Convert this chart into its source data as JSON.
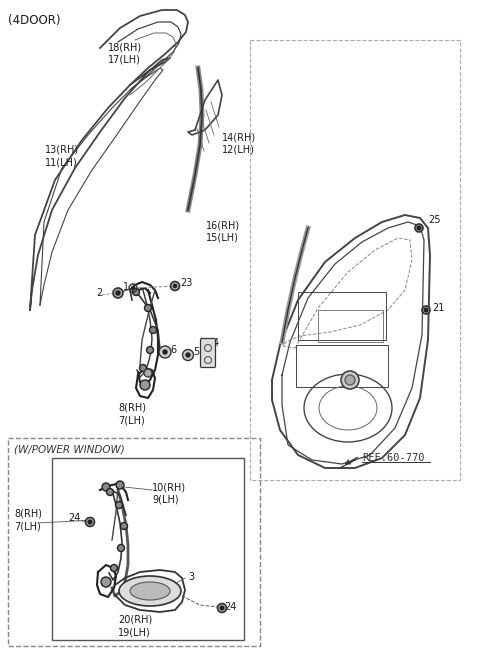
{
  "title": "(4DOOR)",
  "background_color": "#ffffff",
  "text_color": "#1a1a1a",
  "line_color": "#444444",
  "ref_text": "REF.60-770",
  "subtitle_box": "(W/POWER WINDOW)",
  "fig_w": 4.8,
  "fig_h": 6.56,
  "dpi": 100
}
